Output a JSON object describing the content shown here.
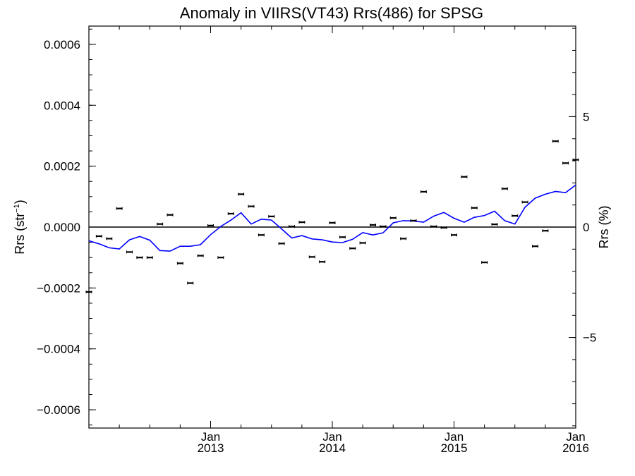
{
  "chart_data": {
    "type": "scatter",
    "title": "Anomaly in VIIRS(VT43) Rrs(486) for SPSG",
    "ylabel_left": {
      "base": "Rrs (str",
      "sup": "−1",
      "close": ")"
    },
    "ylabel_right": "Rrs (%)",
    "xlim": [
      "2012-01",
      "2016-01"
    ],
    "ylim": [
      -0.00066,
      0.00066
    ],
    "ylim_right": [
      -9.1,
      9.1
    ],
    "x_ticks": [
      {
        "month": "2013-01",
        "line1": "Jan",
        "line2": "2013"
      },
      {
        "month": "2014-01",
        "line1": "Jan",
        "line2": "2014"
      },
      {
        "month": "2015-01",
        "line1": "Jan",
        "line2": "2015"
      },
      {
        "month": "2016-01",
        "line1": "Jan",
        "line2": "2016"
      }
    ],
    "y_ticks_left": [
      {
        "value": 0.0006,
        "label": "0.0006"
      },
      {
        "value": 0.0004,
        "label": "0.0004"
      },
      {
        "value": 0.0002,
        "label": "0.0002"
      },
      {
        "value": 0.0,
        "label": "0.0000"
      },
      {
        "value": -0.0002,
        "label": "−0.0002"
      },
      {
        "value": -0.0004,
        "label": "−0.0004"
      },
      {
        "value": -0.0006,
        "label": "−0.0006"
      }
    ],
    "y_ticks_right": [
      {
        "value": 5,
        "label": "5"
      },
      {
        "value": 0,
        "label": "0"
      },
      {
        "value": -5,
        "label": "−5"
      }
    ],
    "grid": false,
    "series": [
      {
        "type": "scatter",
        "color": "#000000",
        "points": [
          {
            "x": "2012-01",
            "y": -0.000213
          },
          {
            "x": "2012-02",
            "y": -3e-05
          },
          {
            "x": "2012-03",
            "y": -3.8e-05
          },
          {
            "x": "2012-04",
            "y": 6.1e-05
          },
          {
            "x": "2012-05",
            "y": -8.2e-05
          },
          {
            "x": "2012-06",
            "y": -0.0001
          },
          {
            "x": "2012-07",
            "y": -0.0001
          },
          {
            "x": "2012-08",
            "y": 1e-05
          },
          {
            "x": "2012-09",
            "y": 4e-05
          },
          {
            "x": "2012-10",
            "y": -0.000119
          },
          {
            "x": "2012-11",
            "y": -0.000184
          },
          {
            "x": "2012-12",
            "y": -9.4e-05
          },
          {
            "x": "2013-01",
            "y": 5e-06
          },
          {
            "x": "2013-02",
            "y": -0.0001
          },
          {
            "x": "2013-03",
            "y": 4.4e-05
          },
          {
            "x": "2013-04",
            "y": 0.000108
          },
          {
            "x": "2013-05",
            "y": 6.8e-05
          },
          {
            "x": "2013-06",
            "y": -2.6e-05
          },
          {
            "x": "2013-07",
            "y": 3.5e-05
          },
          {
            "x": "2013-08",
            "y": -5.4e-05
          },
          {
            "x": "2013-09",
            "y": 2e-06
          },
          {
            "x": "2013-10",
            "y": 1.6e-05
          },
          {
            "x": "2013-11",
            "y": -9.8e-05
          },
          {
            "x": "2013-12",
            "y": -0.000114
          },
          {
            "x": "2014-01",
            "y": 1.4e-05
          },
          {
            "x": "2014-02",
            "y": -3.3e-05
          },
          {
            "x": "2014-03",
            "y": -7e-05
          },
          {
            "x": "2014-04",
            "y": -5.2e-05
          },
          {
            "x": "2014-05",
            "y": 7e-06
          },
          {
            "x": "2014-06",
            "y": 2e-06
          },
          {
            "x": "2014-07",
            "y": 3e-05
          },
          {
            "x": "2014-08",
            "y": -3.8e-05
          },
          {
            "x": "2014-09",
            "y": 2.1e-05
          },
          {
            "x": "2014-10",
            "y": 0.000116
          },
          {
            "x": "2014-11",
            "y": 2e-06
          },
          {
            "x": "2014-12",
            "y": -2e-06
          },
          {
            "x": "2015-01",
            "y": -2.6e-05
          },
          {
            "x": "2015-02",
            "y": 0.000165
          },
          {
            "x": "2015-03",
            "y": 6.3e-05
          },
          {
            "x": "2015-04",
            "y": -0.000116
          },
          {
            "x": "2015-05",
            "y": 9e-06
          },
          {
            "x": "2015-06",
            "y": 0.000126
          },
          {
            "x": "2015-07",
            "y": 3.7e-05
          },
          {
            "x": "2015-08",
            "y": 8.2e-05
          },
          {
            "x": "2015-09",
            "y": -6.3e-05
          },
          {
            "x": "2015-10",
            "y": -1.2e-05
          },
          {
            "x": "2015-11",
            "y": 0.000282
          },
          {
            "x": "2015-12",
            "y": 0.00021
          },
          {
            "x": "2016-01",
            "y": 0.000221
          }
        ]
      },
      {
        "type": "line",
        "color": "#0000ff",
        "points": [
          {
            "x": "2012-01",
            "y": -4.5e-05
          },
          {
            "x": "2012-02",
            "y": -5.5e-05
          },
          {
            "x": "2012-03",
            "y": -6.8e-05
          },
          {
            "x": "2012-04",
            "y": -7.2e-05
          },
          {
            "x": "2012-05",
            "y": -4.2e-05
          },
          {
            "x": "2012-06",
            "y": -3.1e-05
          },
          {
            "x": "2012-07",
            "y": -4.3e-05
          },
          {
            "x": "2012-08",
            "y": -7.7e-05
          },
          {
            "x": "2012-09",
            "y": -7.9e-05
          },
          {
            "x": "2012-10",
            "y": -6.3e-05
          },
          {
            "x": "2012-11",
            "y": -6.3e-05
          },
          {
            "x": "2012-12",
            "y": -5.8e-05
          },
          {
            "x": "2013-01",
            "y": -2.5e-05
          },
          {
            "x": "2013-02",
            "y": 2e-06
          },
          {
            "x": "2013-03",
            "y": 2.3e-05
          },
          {
            "x": "2013-04",
            "y": 4.7e-05
          },
          {
            "x": "2013-05",
            "y": 1e-05
          },
          {
            "x": "2013-06",
            "y": 2.6e-05
          },
          {
            "x": "2013-07",
            "y": 2.3e-05
          },
          {
            "x": "2013-08",
            "y": -6e-06
          },
          {
            "x": "2013-09",
            "y": -3.6e-05
          },
          {
            "x": "2013-10",
            "y": -2.8e-05
          },
          {
            "x": "2013-11",
            "y": -3.9e-05
          },
          {
            "x": "2013-12",
            "y": -4.2e-05
          },
          {
            "x": "2014-01",
            "y": -4.9e-05
          },
          {
            "x": "2014-02",
            "y": -5.1e-05
          },
          {
            "x": "2014-03",
            "y": -4e-05
          },
          {
            "x": "2014-04",
            "y": -1.8e-05
          },
          {
            "x": "2014-05",
            "y": -2.6e-05
          },
          {
            "x": "2014-06",
            "y": -1.9e-05
          },
          {
            "x": "2014-07",
            "y": 1.4e-05
          },
          {
            "x": "2014-08",
            "y": 2.1e-05
          },
          {
            "x": "2014-09",
            "y": 2e-05
          },
          {
            "x": "2014-10",
            "y": 1.6e-05
          },
          {
            "x": "2014-11",
            "y": 3.6e-05
          },
          {
            "x": "2014-12",
            "y": 4.8e-05
          },
          {
            "x": "2015-01",
            "y": 2.9e-05
          },
          {
            "x": "2015-02",
            "y": 1.6e-05
          },
          {
            "x": "2015-03",
            "y": 3.2e-05
          },
          {
            "x": "2015-04",
            "y": 3.8e-05
          },
          {
            "x": "2015-05",
            "y": 5.2e-05
          },
          {
            "x": "2015-06",
            "y": 2.1e-05
          },
          {
            "x": "2015-07",
            "y": 1e-05
          },
          {
            "x": "2015-08",
            "y": 6.5e-05
          },
          {
            "x": "2015-09",
            "y": 9.5e-05
          },
          {
            "x": "2015-10",
            "y": 0.000108
          },
          {
            "x": "2015-11",
            "y": 0.000117
          },
          {
            "x": "2015-12",
            "y": 0.000113
          },
          {
            "x": "2016-01",
            "y": 0.000138
          }
        ]
      }
    ]
  }
}
